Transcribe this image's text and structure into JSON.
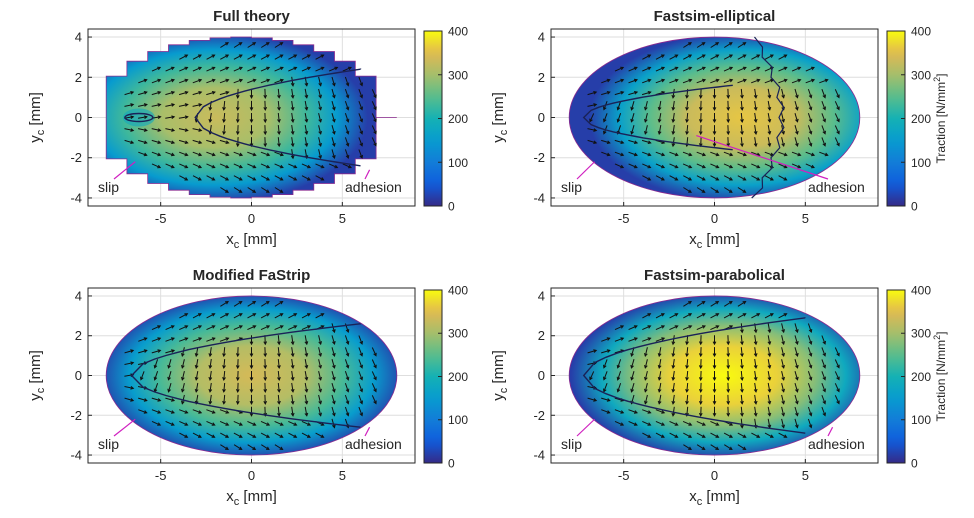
{
  "chart_data": [
    {
      "type": "heatmap",
      "title": "Full theory",
      "xlabel_main": "x",
      "xlabel_sub": "c",
      "xlabel_unit": "[mm]",
      "ylabel_main": "y",
      "ylabel_sub": "c",
      "ylabel_unit": "[mm]",
      "xticks": [
        -5,
        0,
        5
      ],
      "yticks": [
        4,
        2,
        0,
        -2,
        -4
      ],
      "xlim": [
        -9,
        9
      ],
      "ylim": [
        -4.4,
        4.4
      ],
      "grid": true,
      "contact_shape": "stepped-ellipse",
      "semi_axes": {
        "a": 8,
        "b": 4
      },
      "peak": {
        "x": -2,
        "y": 0,
        "value": 330
      },
      "slip_adhesion_boundary": {
        "x_tip": -3.1,
        "x_end": 6,
        "y_end_top": 2.4,
        "y_end_bottom": -2.4
      },
      "slip_island": {
        "x": -6.2,
        "y": 0
      },
      "annotations": [
        {
          "text": "slip",
          "target": [
            -6.4,
            -2.2
          ]
        },
        {
          "text": "adhesion",
          "target": [
            6.5,
            -2.6
          ]
        }
      ],
      "colorbar": {
        "ticks": [
          0,
          100,
          200,
          300,
          400
        ],
        "range": [
          0,
          400
        ],
        "label": ""
      }
    },
    {
      "type": "heatmap",
      "title": "Fastsim-elliptical",
      "xlabel_main": "x",
      "xlabel_sub": "c",
      "xlabel_unit": "[mm]",
      "ylabel_main": "y",
      "ylabel_sub": "c",
      "ylabel_unit": "[mm]",
      "xticks": [
        -5,
        0,
        5
      ],
      "yticks": [
        4,
        2,
        0,
        -2,
        -4
      ],
      "xlim": [
        -9,
        9
      ],
      "ylim": [
        -4.4,
        4.4
      ],
      "grid": true,
      "contact_shape": "ellipse",
      "semi_axes": {
        "a": 8,
        "b": 4
      },
      "peak": {
        "x": 1.5,
        "y": 0,
        "value": 360
      },
      "slip_adhesion_boundary": {
        "x_tip": -7.2,
        "x_end": 1,
        "y_end_top": 1.6,
        "y_end_bottom": -1.6
      },
      "annotations": [
        {
          "text": "slip",
          "target": [
            -6.6,
            -2.2
          ]
        },
        {
          "text": "adhesion",
          "target": [
            -1,
            -0.9
          ]
        }
      ],
      "colorbar": {
        "ticks": [
          0,
          100,
          200,
          300,
          400
        ],
        "range": [
          0,
          400
        ],
        "label": "Traction [N/mm",
        "label_sup": "2",
        "label_close": "]"
      }
    },
    {
      "type": "heatmap",
      "title": "Modified FaStrip",
      "xlabel_main": "x",
      "xlabel_sub": "c",
      "xlabel_unit": "[mm]",
      "ylabel_main": "y",
      "ylabel_sub": "c",
      "ylabel_unit": "[mm]",
      "xticks": [
        -5,
        0,
        5
      ],
      "yticks": [
        4,
        2,
        0,
        -2,
        -4
      ],
      "xlim": [
        -9,
        9
      ],
      "ylim": [
        -4.4,
        4.4
      ],
      "grid": true,
      "contact_shape": "ellipse",
      "semi_axes": {
        "a": 8,
        "b": 4
      },
      "peak": {
        "x": 0,
        "y": 0,
        "value": 340
      },
      "slip_adhesion_boundary": {
        "x_tip": -6.6,
        "x_end": 6,
        "y_end_top": 2.6,
        "y_end_bottom": -2.6
      },
      "annotations": [
        {
          "text": "slip",
          "target": [
            -6.4,
            -2.2
          ]
        },
        {
          "text": "adhesion",
          "target": [
            6.5,
            -2.6
          ]
        }
      ],
      "colorbar": {
        "ticks": [
          0,
          100,
          200,
          300,
          400
        ],
        "range": [
          0,
          400
        ],
        "label": ""
      }
    },
    {
      "type": "heatmap",
      "title": "Fastsim-parabolical",
      "xlabel_main": "x",
      "xlabel_sub": "c",
      "xlabel_unit": "[mm]",
      "ylabel_main": "y",
      "ylabel_sub": "c",
      "ylabel_unit": "[mm]",
      "xticks": [
        -5,
        0,
        5
      ],
      "yticks": [
        4,
        2,
        0,
        -2,
        -4
      ],
      "xlim": [
        -9,
        9
      ],
      "ylim": [
        -4.4,
        4.4
      ],
      "grid": true,
      "contact_shape": "ellipse",
      "semi_axes": {
        "a": 8,
        "b": 4
      },
      "peak": {
        "x": 0.5,
        "y": 0,
        "value": 400
      },
      "slip_adhesion_boundary": {
        "x_tip": -7.2,
        "x_end": 5,
        "y_end_top": 2.9,
        "y_end_bottom": -2.9
      },
      "annotations": [
        {
          "text": "slip",
          "target": [
            -6.6,
            -2.2
          ]
        },
        {
          "text": "adhesion",
          "target": [
            6.5,
            -2.6
          ]
        }
      ],
      "colorbar": {
        "ticks": [
          0,
          100,
          200,
          300,
          400
        ],
        "range": [
          0,
          400
        ],
        "label": "Traction [N/mm",
        "label_sup": "2",
        "label_close": "]"
      }
    }
  ]
}
